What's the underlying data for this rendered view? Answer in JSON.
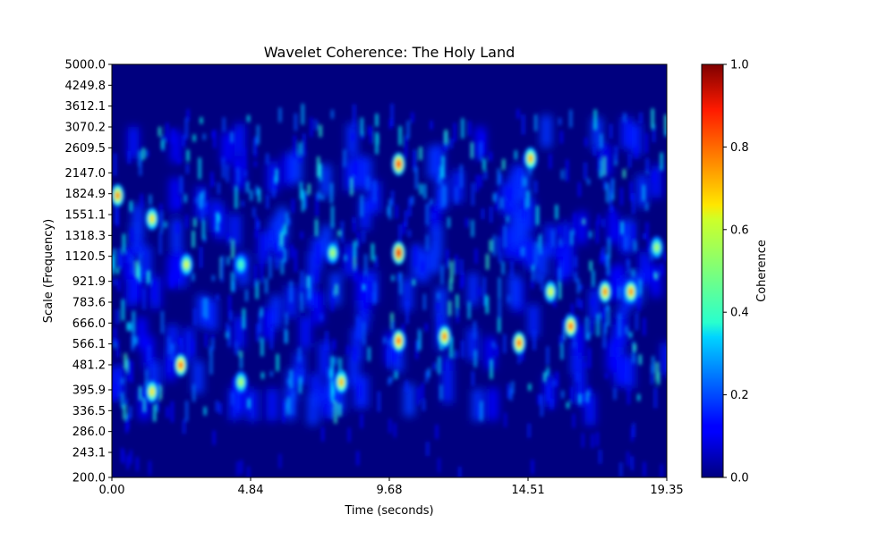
{
  "chart_data": {
    "type": "heatmap",
    "title": "Wavelet Coherence: The Holy Land",
    "xlabel": "Time (seconds)",
    "ylabel": "Scale (Frequency)",
    "colorbar_label": "Coherence",
    "colormap": "jet",
    "xlim": [
      0.0,
      19.35
    ],
    "ylim": [
      200.0,
      5000.0
    ],
    "yscale": "log",
    "clim": [
      0.0,
      1.0
    ],
    "x_ticks": [
      "0.00",
      "4.84",
      "9.68",
      "14.51",
      "19.35"
    ],
    "y_ticks": [
      "200.0",
      "243.1",
      "286.0",
      "336.5",
      "395.9",
      "481.2",
      "566.1",
      "666.0",
      "783.6",
      "921.9",
      "1120.5",
      "1318.3",
      "1551.1",
      "1824.9",
      "2147.0",
      "2609.5",
      "3070.2",
      "3612.1",
      "4249.8",
      "5000.0"
    ],
    "colorbar_ticks": [
      "0.0",
      "0.2",
      "0.4",
      "0.6",
      "0.8",
      "1.0"
    ],
    "hotspots": [
      {
        "x": 10.0,
        "y": 2300,
        "value": 0.85
      },
      {
        "x": 10.0,
        "y": 1150,
        "value": 0.9
      },
      {
        "x": 10.0,
        "y": 580,
        "value": 0.8
      },
      {
        "x": 2.4,
        "y": 480,
        "value": 0.8
      },
      {
        "x": 1.4,
        "y": 390,
        "value": 0.65
      },
      {
        "x": 1.4,
        "y": 1500,
        "value": 0.65
      },
      {
        "x": 0.2,
        "y": 1800,
        "value": 0.75
      },
      {
        "x": 11.6,
        "y": 600,
        "value": 0.75
      },
      {
        "x": 8.0,
        "y": 420,
        "value": 0.7
      },
      {
        "x": 14.2,
        "y": 570,
        "value": 0.8
      },
      {
        "x": 14.6,
        "y": 2400,
        "value": 0.7
      },
      {
        "x": 16.0,
        "y": 650,
        "value": 0.8
      },
      {
        "x": 17.2,
        "y": 850,
        "value": 0.75
      },
      {
        "x": 18.1,
        "y": 850,
        "value": 0.75
      },
      {
        "x": 4.5,
        "y": 420,
        "value": 0.55
      },
      {
        "x": 4.5,
        "y": 1050,
        "value": 0.45
      },
      {
        "x": 15.3,
        "y": 850,
        "value": 0.6
      },
      {
        "x": 19.0,
        "y": 1200,
        "value": 0.55
      },
      {
        "x": 2.6,
        "y": 1050,
        "value": 0.6
      },
      {
        "x": 7.7,
        "y": 1150,
        "value": 0.55
      }
    ]
  }
}
